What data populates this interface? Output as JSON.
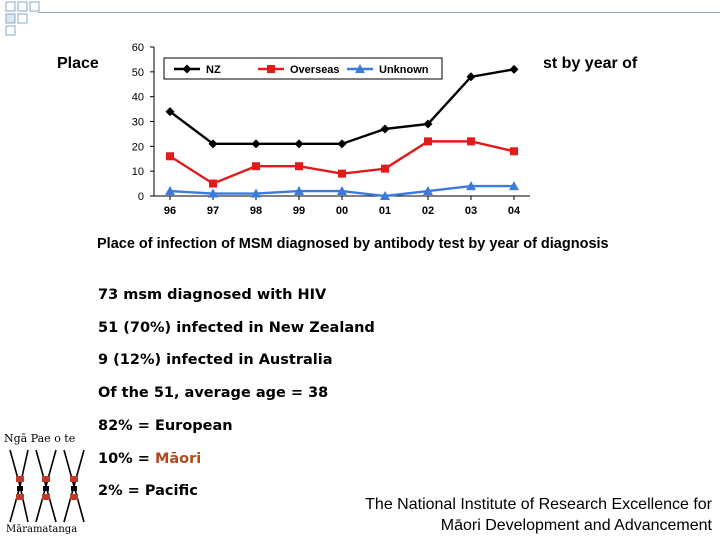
{
  "slide": {
    "title_start": "Place",
    "title_end": "st by year of",
    "caption": "Place of infection of MSM diagnosed by antibody test by year of diagnosis",
    "stats": [
      "73 msm diagnosed with HIV",
      "51 (70%) infected in New Zealand",
      "9 (12%) infected in Australia",
      "Of the 51, average age = 38",
      "82% = European"
    ],
    "stat_maori_prefix": "10% = ",
    "stat_maori_word": "Māori",
    "stat_pacific": "2% = Pacific",
    "institute_line1": "The National Institute of Research Excellence for",
    "institute_line2": "Māori Development and Advancement",
    "maori_color": "#b24a1e"
  },
  "logo": {
    "top_text": "Ngā Pae o te",
    "bottom_text": "Māramatanga"
  },
  "chart_data": {
    "type": "line",
    "categories": [
      "96",
      "97",
      "98",
      "99",
      "00",
      "01",
      "02",
      "03",
      "04"
    ],
    "yticks": [
      "0",
      "10",
      "20",
      "30",
      "40",
      "50",
      "60"
    ],
    "ylim": [
      0,
      60
    ],
    "grid": false,
    "legend_position": "top",
    "series": [
      {
        "name": "NZ",
        "color": "#000000",
        "marker": "diamond",
        "values": [
          34,
          21,
          21,
          21,
          21,
          27,
          29,
          48,
          51
        ]
      },
      {
        "name": "Overseas",
        "color": "#e31a1c",
        "marker": "square",
        "values": [
          16,
          5,
          12,
          12,
          9,
          11,
          22,
          22,
          18
        ]
      },
      {
        "name": "Unknown",
        "color": "#3b7bdc",
        "marker": "triangle",
        "values": [
          2,
          1,
          1,
          2,
          2,
          0,
          2,
          4,
          4
        ]
      }
    ]
  }
}
